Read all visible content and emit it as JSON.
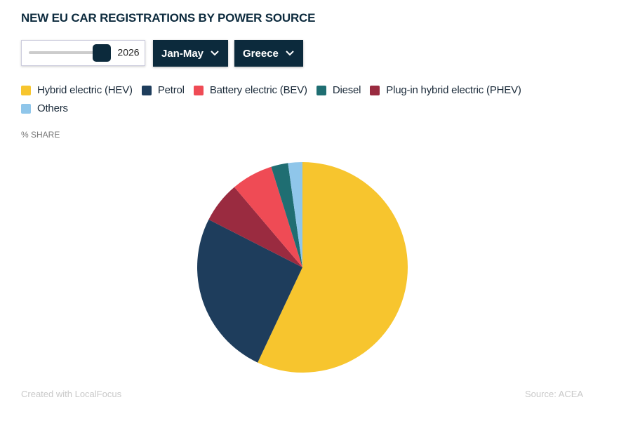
{
  "chart_data": {
    "type": "pie",
    "title": "NEW EU CAR REGISTRATIONS BY POWER SOURCE",
    "subtitle": "% SHARE",
    "categories": [
      "Hybrid electric (HEV)",
      "Petrol",
      "Battery electric (BEV)",
      "Diesel",
      "Plug-in hybrid electric (PHEV)",
      "Others"
    ],
    "values": [
      57,
      25.5,
      6.4,
      2.6,
      6.3,
      2.2
    ],
    "colors": [
      "#f7c52e",
      "#1e3d5c",
      "#ef4b55",
      "#1f6e72",
      "#9a2b40",
      "#8fc6ea"
    ]
  },
  "controls": {
    "year": "2026",
    "period": "Jan-May",
    "country": "Greece"
  },
  "footer": {
    "credit": "Created with LocalFocus",
    "source": "Source:  ACEA"
  }
}
